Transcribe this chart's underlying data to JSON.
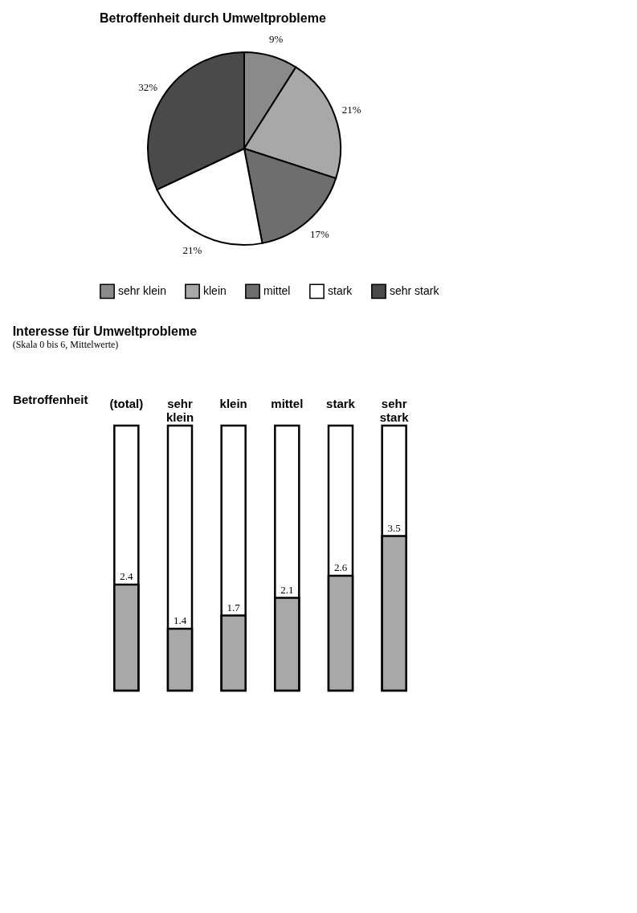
{
  "chart_data": [
    {
      "type": "pie",
      "title": "Betroffenheit durch Umweltprobleme",
      "categories": [
        "sehr klein",
        "klein",
        "mittel",
        "stark",
        "sehr stark"
      ],
      "values": [
        9,
        21,
        17,
        21,
        32
      ],
      "value_labels": [
        "9%",
        "21%",
        "17%",
        "21%",
        "32%"
      ],
      "colors": [
        "#8a8a8a",
        "#a8a8a8",
        "#6e6e6e",
        "#ffffff",
        "#4a4a4a"
      ],
      "legend": "bottom"
    },
    {
      "type": "bar",
      "title": "Interesse für Umweltprobleme",
      "subtitle": "(Skala 0 bis 6, Mittelwerte)",
      "xlabel": "Betroffenheit",
      "categories": [
        "(total)",
        "sehr klein",
        "klein",
        "mittel",
        "stark",
        "sehr stark"
      ],
      "values": [
        2.4,
        1.4,
        1.7,
        2.1,
        2.6,
        3.5
      ],
      "color": "#a8a8a8",
      "ylim": [
        0,
        6
      ],
      "data_labels": true,
      "tick_labels": "x"
    }
  ]
}
